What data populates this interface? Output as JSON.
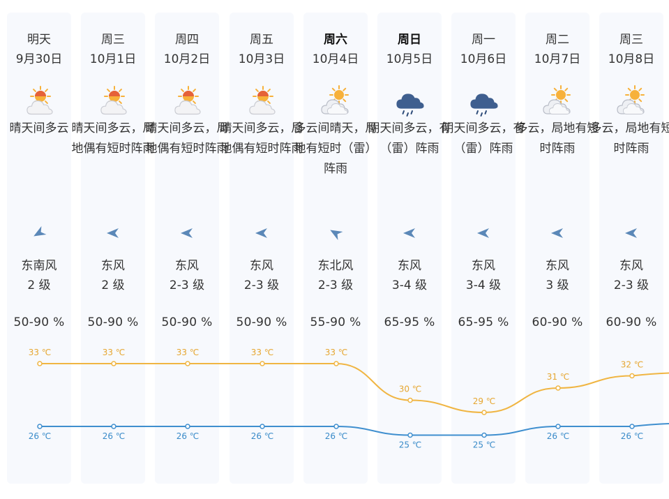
{
  "forecast": {
    "days": [
      {
        "weekday": "明天",
        "date": "9月30日",
        "bold": false,
        "icon": "sunny-cloudy-icon",
        "desc": "晴天间多云",
        "wind_dir": "东南风",
        "wind_level": "2 级",
        "humidity": "50-90 %",
        "wind_icon": "wind-southeast-icon",
        "wind_angle": 330
      },
      {
        "weekday": "周三",
        "date": "10月1日",
        "bold": false,
        "icon": "sunny-cloudy-icon",
        "desc": "晴天间多云，局地偶有短时阵雨",
        "wind_dir": "东风",
        "wind_level": "2 级",
        "humidity": "50-90 %",
        "wind_icon": "wind-east-icon",
        "wind_angle": 0
      },
      {
        "weekday": "周四",
        "date": "10月2日",
        "bold": false,
        "icon": "sunny-cloudy-icon",
        "desc": "晴天间多云，局地偶有短时阵雨",
        "wind_dir": "东风",
        "wind_level": "2-3 级",
        "humidity": "50-90 %",
        "wind_icon": "wind-east-icon",
        "wind_angle": 0
      },
      {
        "weekday": "周五",
        "date": "10月3日",
        "bold": false,
        "icon": "sunny-cloudy-icon",
        "desc": "晴天间多云，局地偶有短时阵雨",
        "wind_dir": "东风",
        "wind_level": "2-3 级",
        "humidity": "50-90 %",
        "wind_icon": "wind-east-icon",
        "wind_angle": 0
      },
      {
        "weekday": "周六",
        "date": "10月4日",
        "bold": true,
        "icon": "cloudy-sunny-icon",
        "desc": "多云间晴天，局地有短时（雷）阵雨",
        "wind_dir": "东北风",
        "wind_level": "2-3 级",
        "humidity": "55-90 %",
        "wind_icon": "wind-northeast-icon",
        "wind_angle": 30
      },
      {
        "weekday": "周日",
        "date": "10月5日",
        "bold": true,
        "icon": "thunder-rain-icon",
        "desc": "阴天间多云，有（雷）阵雨",
        "wind_dir": "东风",
        "wind_level": "3-4 级",
        "humidity": "65-95 %",
        "wind_icon": "wind-east-icon",
        "wind_angle": 0
      },
      {
        "weekday": "周一",
        "date": "10月6日",
        "bold": false,
        "icon": "thunder-rain-icon",
        "desc": "阴天间多云，有（雷）阵雨",
        "wind_dir": "东风",
        "wind_level": "3-4 级",
        "humidity": "65-95 %",
        "wind_icon": "wind-east-icon",
        "wind_angle": 0
      },
      {
        "weekday": "周二",
        "date": "10月7日",
        "bold": false,
        "icon": "cloudy-sunny-icon",
        "desc": "多云，局地有短时阵雨",
        "wind_dir": "东风",
        "wind_level": "3 级",
        "humidity": "60-90 %",
        "wind_icon": "wind-east-icon",
        "wind_angle": 0
      },
      {
        "weekday": "周三",
        "date": "10月8日",
        "bold": false,
        "icon": "cloudy-sunny-icon",
        "desc": "多云，局地有短时阵雨",
        "wind_dir": "东风",
        "wind_level": "2-3 级",
        "humidity": "60-90 %",
        "wind_icon": "wind-east-icon",
        "wind_angle": 0
      }
    ]
  },
  "colors": {
    "high_line": "#f0b542",
    "high_text": "#e6a630",
    "low_line": "#3f8fcf",
    "low_text": "#3a8bc9",
    "wind_icon": "#5b88b8",
    "rain_cloud": "#3f5f8f",
    "sun": "#f7b13a"
  },
  "chart_data": {
    "type": "line",
    "categories": [
      "9月30日",
      "10月1日",
      "10月2日",
      "10月3日",
      "10月4日",
      "10月5日",
      "10月6日",
      "10月7日",
      "10月8日"
    ],
    "series": [
      {
        "values": [
          33,
          33,
          33,
          33,
          33,
          30,
          29,
          31,
          32
        ],
        "labels": [
          "33 ℃",
          "33 ℃",
          "33 ℃",
          "33 ℃",
          "33 ℃",
          "30 ℃",
          "29 ℃",
          "31 ℃",
          "32 ℃"
        ]
      },
      {
        "values": [
          26,
          26,
          26,
          26,
          26,
          25,
          25,
          26,
          26
        ],
        "labels": [
          "26 ℃",
          "26 ℃",
          "26 ℃",
          "26 ℃",
          "26 ℃",
          "25 ℃",
          "25 ℃",
          "26 ℃",
          "26 ℃"
        ]
      }
    ],
    "xlabel": "",
    "ylabel": "",
    "grid": false,
    "legend": false
  }
}
